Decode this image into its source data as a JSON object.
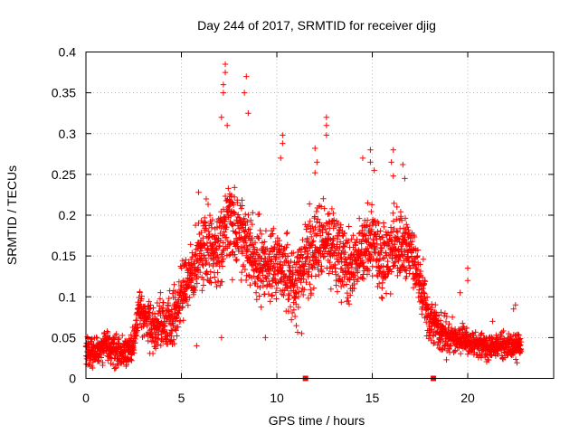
{
  "chart_data": {
    "type": "scatter",
    "title": "Day 244 of 2017, SRMTID for receiver djig",
    "xlabel": "GPS time / hours",
    "ylabel": "SRMTID / TECUs",
    "xlim": [
      0,
      24.5
    ],
    "ylim": [
      0,
      0.4
    ],
    "x_ticks": [
      0,
      5,
      10,
      15,
      20
    ],
    "x_tick_labels": [
      "0",
      "5",
      "10",
      "15",
      "20"
    ],
    "y_ticks": [
      0,
      0.05,
      0.1,
      0.15,
      0.2,
      0.25,
      0.3,
      0.35,
      0.4
    ],
    "y_tick_labels": [
      "0",
      "0.05",
      "0.1",
      "0.15",
      "0.2",
      "0.25",
      "0.3",
      "0.35",
      "0.4"
    ],
    "grid": true,
    "marker": "plus",
    "color": "#ff0000",
    "series": [
      {
        "name": "SRMTID",
        "trend": {
          "x": [
            0,
            0.5,
            1,
            1.5,
            2,
            2.5,
            2.8,
            3,
            3.5,
            4,
            4.5,
            5,
            5.5,
            6,
            6.5,
            7,
            7.5,
            8,
            8.5,
            9,
            9.5,
            10,
            10.5,
            11,
            11.5,
            12,
            12.5,
            13,
            13.5,
            14,
            14.5,
            15,
            15.5,
            16,
            16.5,
            17,
            17.5,
            18,
            18.5,
            19,
            19.5,
            20,
            20.5,
            21,
            21.5,
            22,
            22.5,
            22.8
          ],
          "y": [
            0.035,
            0.03,
            0.04,
            0.035,
            0.03,
            0.04,
            0.09,
            0.08,
            0.06,
            0.07,
            0.07,
            0.1,
            0.13,
            0.15,
            0.16,
            0.15,
            0.2,
            0.18,
            0.16,
            0.14,
            0.14,
            0.14,
            0.13,
            0.11,
            0.15,
            0.16,
            0.17,
            0.16,
            0.15,
            0.13,
            0.16,
            0.17,
            0.14,
            0.16,
            0.16,
            0.16,
            0.12,
            0.07,
            0.06,
            0.05,
            0.05,
            0.045,
            0.04,
            0.04,
            0.04,
            0.04,
            0.04,
            0.04
          ]
        },
        "spread": {
          "x": [
            0,
            3,
            5,
            7,
            8,
            10,
            12,
            15,
            17,
            18,
            20,
            22.8
          ],
          "y": [
            0.018,
            0.03,
            0.045,
            0.06,
            0.06,
            0.055,
            0.06,
            0.055,
            0.05,
            0.035,
            0.02,
            0.02
          ]
        },
        "notable_points": [
          {
            "x": 7.3,
            "y": 0.385
          },
          {
            "x": 7.3,
            "y": 0.375
          },
          {
            "x": 7.2,
            "y": 0.36
          },
          {
            "x": 7.2,
            "y": 0.35
          },
          {
            "x": 8.4,
            "y": 0.37
          },
          {
            "x": 8.3,
            "y": 0.35
          },
          {
            "x": 7.1,
            "y": 0.32
          },
          {
            "x": 7.4,
            "y": 0.31
          },
          {
            "x": 8.5,
            "y": 0.325
          },
          {
            "x": 10.3,
            "y": 0.298
          },
          {
            "x": 10.3,
            "y": 0.288
          },
          {
            "x": 10.2,
            "y": 0.27
          },
          {
            "x": 12.6,
            "y": 0.32
          },
          {
            "x": 12.6,
            "y": 0.31
          },
          {
            "x": 12.6,
            "y": 0.298
          },
          {
            "x": 12.0,
            "y": 0.282
          },
          {
            "x": 12.1,
            "y": 0.265
          },
          {
            "x": 12.0,
            "y": 0.252
          },
          {
            "x": 14.9,
            "y": 0.28
          },
          {
            "x": 14.9,
            "y": 0.265
          },
          {
            "x": 15.1,
            "y": 0.255
          },
          {
            "x": 16.1,
            "y": 0.28
          },
          {
            "x": 16.0,
            "y": 0.265
          },
          {
            "x": 16.6,
            "y": 0.262
          },
          {
            "x": 16.1,
            "y": 0.248
          },
          {
            "x": 16.7,
            "y": 0.245
          },
          {
            "x": 20.0,
            "y": 0.135
          },
          {
            "x": 20.0,
            "y": 0.12
          },
          {
            "x": 19.6,
            "y": 0.105
          },
          {
            "x": 5.9,
            "y": 0.228
          },
          {
            "x": 6.3,
            "y": 0.22
          },
          {
            "x": 5.8,
            "y": 0.04
          },
          {
            "x": 7.1,
            "y": 0.05
          },
          {
            "x": 0.3,
            "y": 0.015
          },
          {
            "x": 1.5,
            "y": 0.012
          },
          {
            "x": 2.1,
            "y": 0.015
          },
          {
            "x": 22.5,
            "y": 0.09
          },
          {
            "x": 22.4,
            "y": 0.085
          },
          {
            "x": 21.3,
            "y": 0.07
          },
          {
            "x": 9.4,
            "y": 0.05
          },
          {
            "x": 11.3,
            "y": 0.055
          },
          {
            "x": 14.5,
            "y": 0.27
          }
        ]
      }
    ],
    "bottom_markers": [
      {
        "x": 11.5,
        "y": 0
      },
      {
        "x": 18.2,
        "y": 0
      }
    ]
  }
}
